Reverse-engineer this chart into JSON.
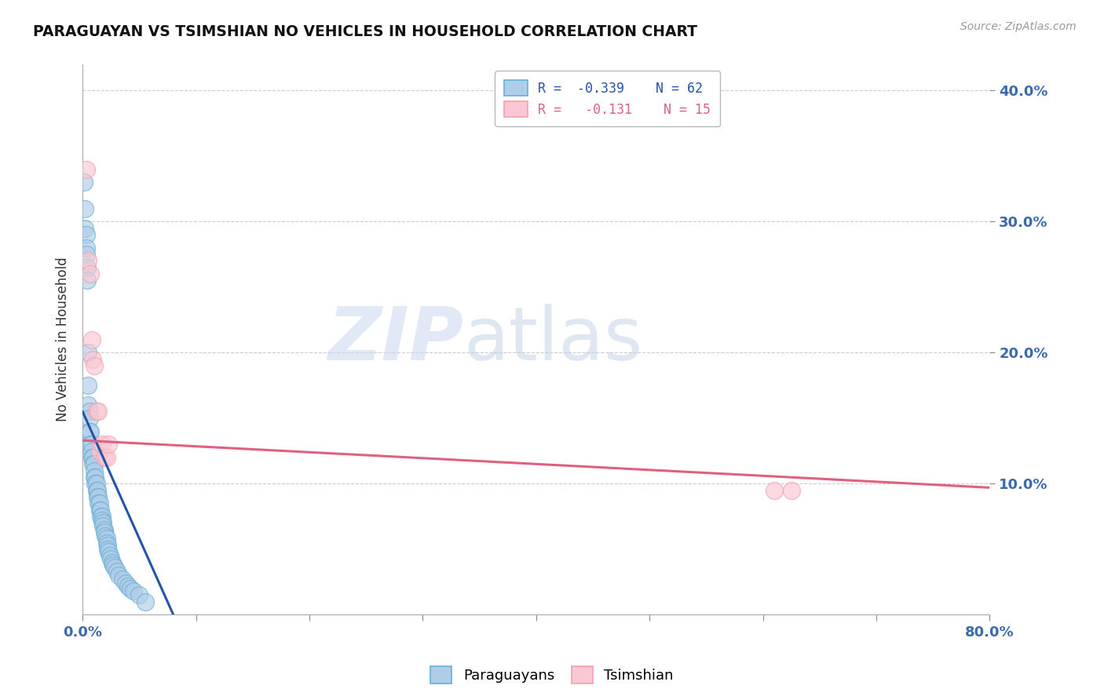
{
  "title": "PARAGUAYAN VS TSIMSHIAN NO VEHICLES IN HOUSEHOLD CORRELATION CHART",
  "source_text": "Source: ZipAtlas.com",
  "ylabel": "No Vehicles in Household",
  "xlim": [
    0.0,
    0.8
  ],
  "ylim": [
    0.0,
    0.42
  ],
  "x_ticks": [
    0.0,
    0.1,
    0.2,
    0.3,
    0.4,
    0.5,
    0.6,
    0.7,
    0.8
  ],
  "y_ticks_right": [
    0.1,
    0.2,
    0.3,
    0.4
  ],
  "y_tick_labels_right": [
    "10.0%",
    "20.0%",
    "30.0%",
    "40.0%"
  ],
  "blue_R": "-0.339",
  "blue_N": "62",
  "pink_R": "-0.131",
  "pink_N": "15",
  "blue_label": "Paraguayans",
  "pink_label": "Tsimshian",
  "blue_color": "#6baed6",
  "blue_fill": "#aecde8",
  "pink_color": "#f4a0b0",
  "pink_fill": "#f9c8d2",
  "blue_line_color": "#2255aa",
  "pink_line_color": "#e06080",
  "legend_R_color": "#2255aa",
  "watermark_zip": "ZIP",
  "watermark_atlas": "atlas",
  "background_color": "#ffffff",
  "grid_color": "#cccccc",
  "blue_x": [
    0.001,
    0.002,
    0.002,
    0.003,
    0.003,
    0.003,
    0.004,
    0.004,
    0.005,
    0.005,
    0.005,
    0.006,
    0.006,
    0.006,
    0.007,
    0.007,
    0.008,
    0.008,
    0.008,
    0.009,
    0.009,
    0.01,
    0.01,
    0.01,
    0.011,
    0.011,
    0.012,
    0.012,
    0.013,
    0.013,
    0.014,
    0.014,
    0.015,
    0.015,
    0.016,
    0.016,
    0.017,
    0.017,
    0.018,
    0.018,
    0.019,
    0.019,
    0.02,
    0.021,
    0.021,
    0.022,
    0.022,
    0.023,
    0.024,
    0.025,
    0.026,
    0.027,
    0.028,
    0.03,
    0.032,
    0.035,
    0.038,
    0.04,
    0.042,
    0.045,
    0.05,
    0.055
  ],
  "blue_y": [
    0.33,
    0.31,
    0.295,
    0.29,
    0.28,
    0.275,
    0.265,
    0.255,
    0.2,
    0.175,
    0.16,
    0.155,
    0.15,
    0.14,
    0.14,
    0.13,
    0.13,
    0.125,
    0.12,
    0.12,
    0.115,
    0.115,
    0.11,
    0.105,
    0.105,
    0.1,
    0.1,
    0.095,
    0.095,
    0.09,
    0.09,
    0.085,
    0.085,
    0.08,
    0.08,
    0.075,
    0.075,
    0.072,
    0.07,
    0.068,
    0.065,
    0.063,
    0.06,
    0.058,
    0.055,
    0.053,
    0.05,
    0.048,
    0.045,
    0.043,
    0.04,
    0.038,
    0.036,
    0.033,
    0.03,
    0.027,
    0.024,
    0.022,
    0.02,
    0.018,
    0.015,
    0.01
  ],
  "pink_x": [
    0.003,
    0.005,
    0.007,
    0.008,
    0.009,
    0.01,
    0.012,
    0.014,
    0.015,
    0.017,
    0.019,
    0.021,
    0.023,
    0.61,
    0.625
  ],
  "pink_y": [
    0.34,
    0.27,
    0.26,
    0.21,
    0.195,
    0.19,
    0.155,
    0.155,
    0.125,
    0.13,
    0.12,
    0.12,
    0.13,
    0.095,
    0.095
  ],
  "blue_line_x0": 0.0,
  "blue_line_x1": 0.08,
  "blue_line_y0": 0.155,
  "blue_line_y1": 0.0,
  "pink_line_x0": 0.0,
  "pink_line_x1": 0.8,
  "pink_line_y0": 0.133,
  "pink_line_y1": 0.097
}
